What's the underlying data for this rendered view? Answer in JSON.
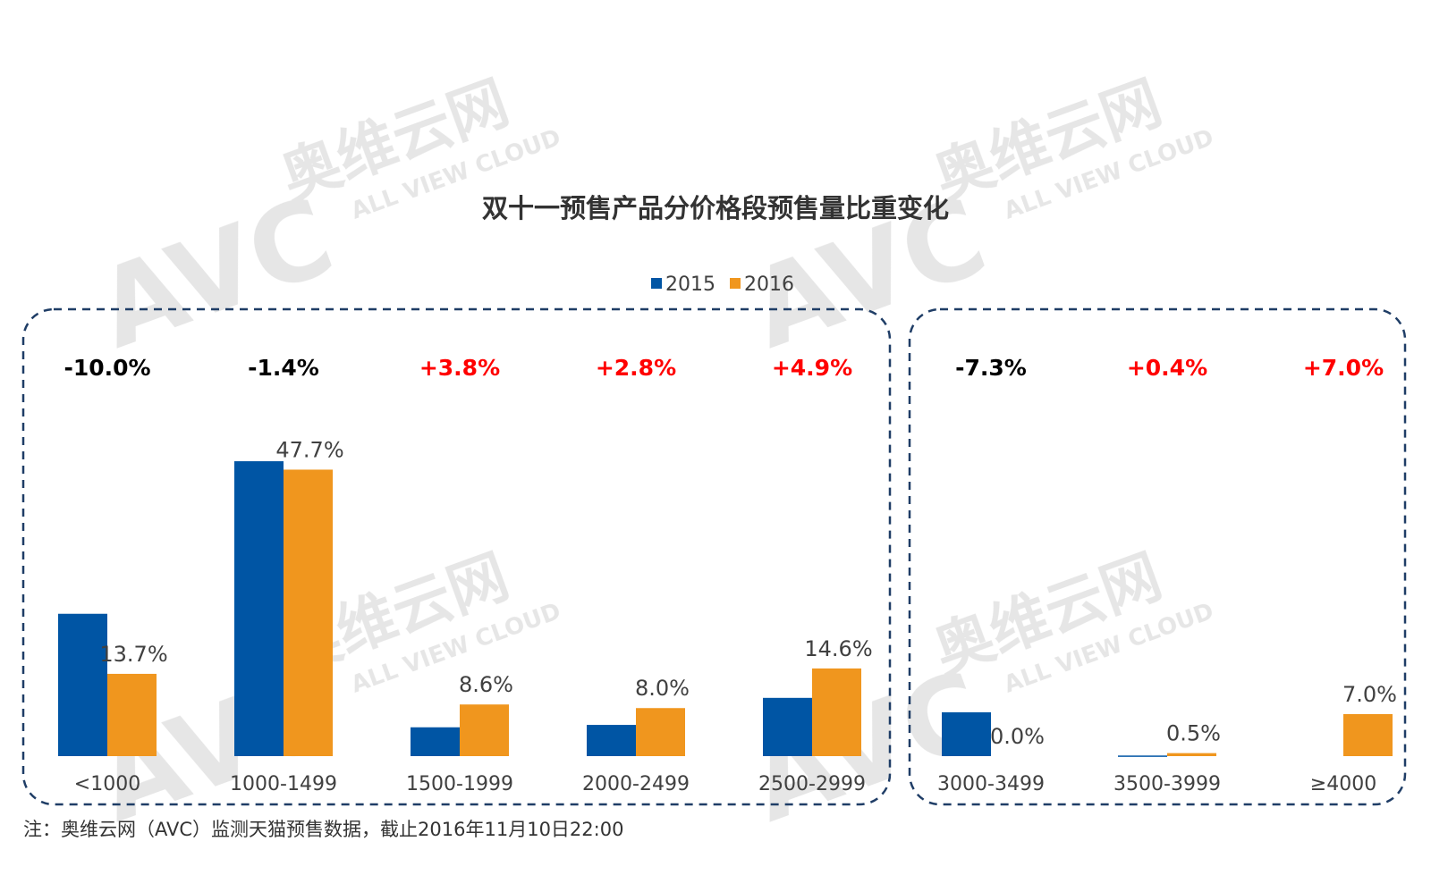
{
  "chart_data": {
    "type": "bar",
    "title": "双十一预售产品分价格段预售量比重变化",
    "categories": [
      "<1000",
      "1000-1499",
      "1500-1999",
      "2000-2499",
      "2500-2999",
      "3000-3499",
      "3500-3999",
      "≥4000"
    ],
    "series": [
      {
        "name": "2015",
        "color": "#0055A4",
        "values": [
          23.7,
          49.1,
          4.8,
          5.2,
          9.7,
          7.3,
          0.1,
          0.0
        ]
      },
      {
        "name": "2016",
        "color": "#F0961E",
        "values": [
          13.7,
          47.7,
          8.6,
          8.0,
          14.6,
          0.0,
          0.5,
          7.0
        ]
      }
    ],
    "data_labels_2016": [
      "13.7%",
      "47.7%",
      "8.6%",
      "8.0%",
      "14.6%",
      "0.0%",
      "0.5%",
      "7.0%"
    ],
    "changes": [
      "-10.0%",
      "-1.4%",
      "+3.8%",
      "+2.8%",
      "+4.9%",
      "-7.3%",
      "+0.4%",
      "+7.0%"
    ],
    "change_colors": {
      "positive": "#FF0000",
      "negative": "#000000"
    },
    "groups": [
      [
        "<1000",
        "1000-1499",
        "1500-1999",
        "2000-2499",
        "2500-2999"
      ],
      [
        "3000-3499",
        "3500-3999",
        "≥4000"
      ]
    ],
    "group_border_color": "#1F3D66",
    "legend_position": "top",
    "grid": false
  },
  "watermark": {
    "logo": "AVC",
    "cn": "奥维云网",
    "en": "ALL VIEW CLOUD"
  },
  "note": "注：奥维云网（AVC）监测天猫预售数据，截止2016年11月10日22:00"
}
